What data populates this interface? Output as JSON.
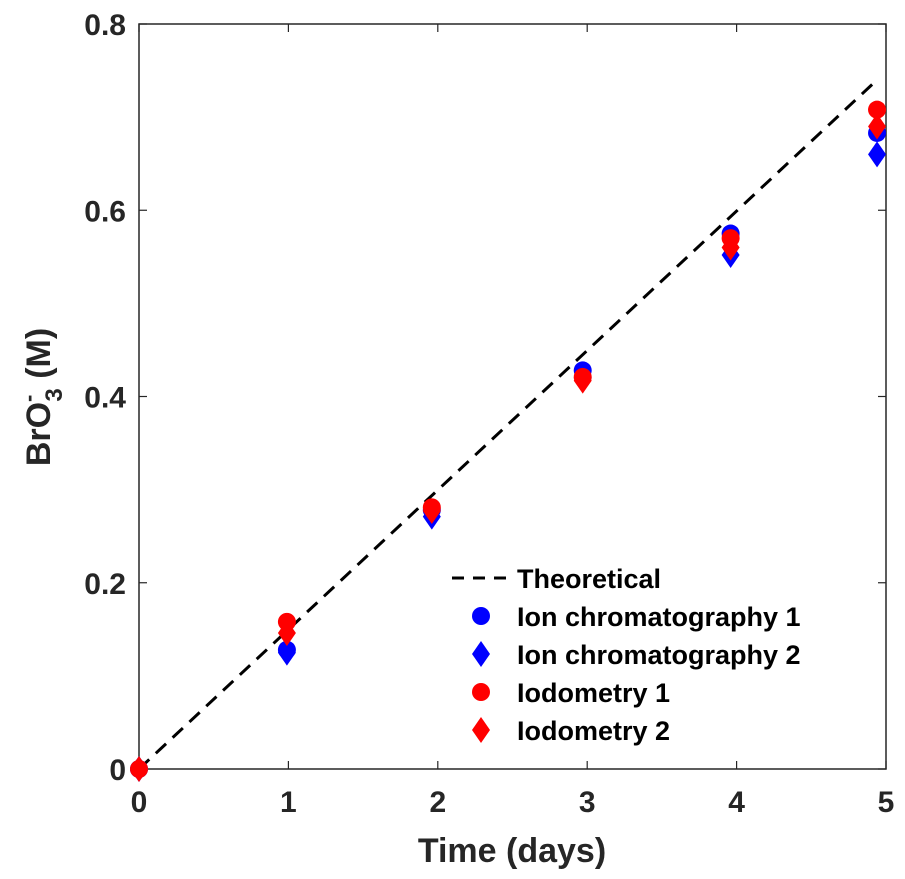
{
  "chart_data": {
    "type": "scatter",
    "title": "",
    "xlabel": "Time (days)",
    "ylabel_main": "BrO",
    "ylabel_sup": "-",
    "ylabel_sub": "3",
    "ylabel_unit": " (M)",
    "xlim": [
      0,
      5
    ],
    "ylim": [
      0,
      0.8
    ],
    "xticks": [
      0,
      1,
      2,
      3,
      4,
      5
    ],
    "xtick_labels": [
      "0",
      "1",
      "2",
      "3",
      "4",
      "5"
    ],
    "yticks": [
      0,
      0.2,
      0.4,
      0.6,
      0.8
    ],
    "ytick_labels": [
      "0",
      "0.2",
      "0.4",
      "0.6",
      "0.8"
    ],
    "grid": false,
    "legend_position": "bottom-right",
    "series": [
      {
        "name": "Theoretical",
        "kind": "line",
        "style": "dashed",
        "color": "#000000",
        "x": [
          0,
          4.94
        ],
        "y": [
          0,
          0.74
        ]
      },
      {
        "name": "Ion chromatography 1",
        "kind": "marker",
        "marker": "circle",
        "color": "#0000ff",
        "x": [
          0,
          0.99,
          1.96,
          2.97,
          3.96,
          4.94
        ],
        "y": [
          0,
          0.128,
          0.278,
          0.428,
          0.575,
          0.683
        ]
      },
      {
        "name": "Ion chromatography 2",
        "kind": "marker",
        "marker": "diamond",
        "color": "#0000ff",
        "x": [
          0,
          0.99,
          1.96,
          2.97,
          3.96,
          4.94
        ],
        "y": [
          0,
          0.125,
          0.271,
          0.42,
          0.552,
          0.66
        ]
      },
      {
        "name": "Iodometry 1",
        "kind": "marker",
        "marker": "circle",
        "color": "#ff0000",
        "x": [
          0,
          0.99,
          1.96,
          2.97,
          3.96,
          4.94
        ],
        "y": [
          0,
          0.158,
          0.281,
          0.421,
          0.57,
          0.708
        ]
      },
      {
        "name": "Iodometry 2",
        "kind": "marker",
        "marker": "diamond",
        "color": "#ff0000",
        "x": [
          0,
          0.99,
          1.96,
          2.97,
          3.96,
          4.94
        ],
        "y": [
          0,
          0.146,
          0.277,
          0.417,
          0.56,
          0.69
        ]
      }
    ]
  }
}
